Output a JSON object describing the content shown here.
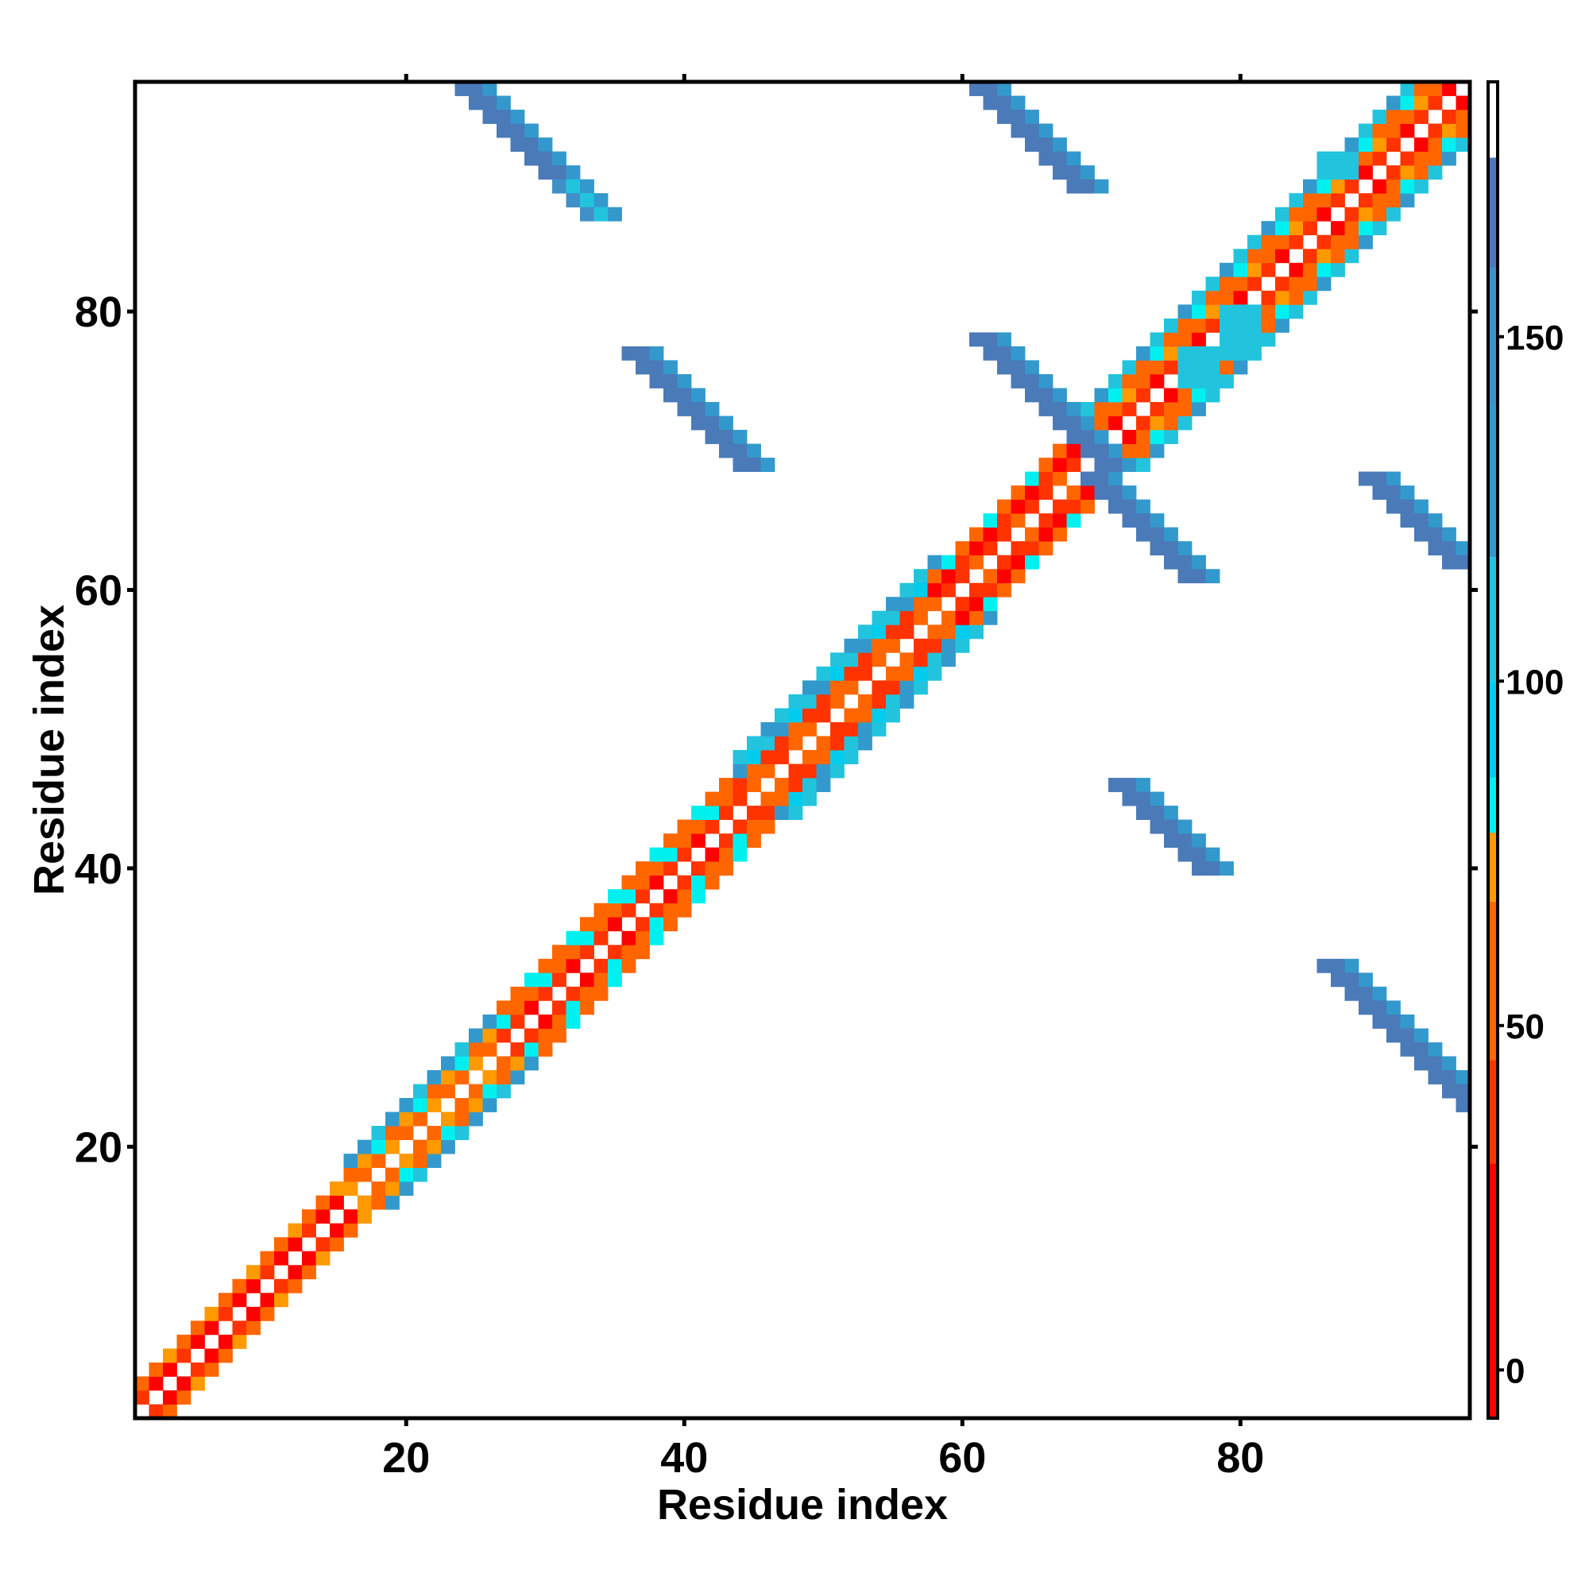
{
  "chart_data": {
    "type": "heatmap",
    "title": "",
    "xlabel": "Residue index",
    "ylabel": "Residue index",
    "xlim": [
      1,
      96
    ],
    "ylim": [
      1,
      96
    ],
    "x_ticks": [
      20,
      40,
      60,
      80
    ],
    "y_ticks": [
      20,
      40,
      60,
      80
    ],
    "colorbar": {
      "range": [
        -7,
        187
      ],
      "ticks": [
        0,
        50,
        100,
        150
      ],
      "segments": [
        {
          "from": -7,
          "to": 30,
          "color": "#ff0000"
        },
        {
          "from": 30,
          "to": 45,
          "color": "#ff3300"
        },
        {
          "from": 45,
          "to": 68,
          "color": "#ff6600"
        },
        {
          "from": 68,
          "to": 78,
          "color": "#ff9900"
        },
        {
          "from": 78,
          "to": 86,
          "color": "#00f0f0"
        },
        {
          "from": 86,
          "to": 100,
          "color": "#00ccee"
        },
        {
          "from": 100,
          "to": 118,
          "color": "#22c4dd"
        },
        {
          "from": 118,
          "to": 140,
          "color": "#3399cc"
        },
        {
          "from": 140,
          "to": 160,
          "color": "#4090c8"
        },
        {
          "from": 160,
          "to": 176,
          "color": "#4a7ab8"
        },
        {
          "from": 176,
          "to": 187,
          "color": "#ffffff"
        }
      ]
    },
    "regions": [
      {
        "name": "diag-1-15",
        "diagonal": true,
        "from": 1,
        "to": 16,
        "offsets": [
          1,
          2
        ],
        "values": [
          10,
          45
        ]
      },
      {
        "name": "diag-16-26",
        "diagonal": true,
        "from": 16,
        "to": 27,
        "offsets": [
          1,
          2,
          3
        ],
        "values": [
          45,
          60,
          110
        ]
      },
      {
        "name": "diag-27-44",
        "diagonal": true,
        "from": 27,
        "to": 45,
        "offsets": [
          1,
          2,
          3
        ],
        "values": [
          20,
          55,
          55
        ]
      },
      {
        "name": "diag-44-58",
        "diagonal": true,
        "from": 44,
        "to": 58,
        "offsets": [
          1,
          2,
          3,
          4
        ],
        "values": [
          40,
          30,
          95,
          100
        ]
      },
      {
        "name": "diag-58-69",
        "diagonal": true,
        "from": 58,
        "to": 69,
        "offsets": [
          1,
          2,
          3
        ],
        "values": [
          30,
          15,
          55
        ]
      },
      {
        "name": "diag-69-96",
        "diagonal": true,
        "from": 69,
        "to": 96,
        "offsets": [
          1,
          2,
          3,
          4
        ],
        "values": [
          20,
          50,
          55,
          100
        ]
      },
      {
        "name": "sheet-25-95",
        "anti": true,
        "x0": 24,
        "y0": 96,
        "len": 10,
        "width": 3,
        "value": 160
      },
      {
        "name": "sheet-33-88",
        "anti": true,
        "x0": 31,
        "y0": 89,
        "len": 3,
        "width": 2,
        "value": 150
      },
      {
        "name": "sheet-61-94",
        "anti": true,
        "x0": 61,
        "y0": 96,
        "len": 8,
        "width": 3,
        "value": 160
      },
      {
        "name": "sheet-37-76",
        "anti": true,
        "x0": 36,
        "y0": 77,
        "len": 9,
        "width": 3,
        "value": 160
      },
      {
        "name": "sheet-61-76",
        "anti": true,
        "x0": 61,
        "y0": 78,
        "len": 10,
        "width": 3,
        "value": 160
      },
      {
        "name": "sheet-71-64",
        "anti": true,
        "x0": 69,
        "y0": 68,
        "len": 8,
        "width": 3,
        "value": 160
      },
      {
        "name": "sheet-90-62",
        "anti": true,
        "x0": 89,
        "y0": 68,
        "len": 7,
        "width": 3,
        "value": 160
      },
      {
        "name": "sheet-72-40",
        "anti": true,
        "x0": 71,
        "y0": 46,
        "len": 7,
        "width": 3,
        "value": 160
      },
      {
        "name": "sheet-88-28",
        "anti": true,
        "x0": 86,
        "y0": 33,
        "len": 11,
        "width": 3,
        "value": 160
      },
      {
        "name": "sheet-82-83",
        "block": true,
        "x0": 79,
        "y0": 80,
        "w": 3,
        "h": 4,
        "value": 100
      },
      {
        "name": "sheet-86-91",
        "block": true,
        "x0": 86,
        "y0": 91,
        "w": 3,
        "h": 2,
        "value": 100
      },
      {
        "name": "sheet-77-80",
        "block": true,
        "x0": 76,
        "y0": 77,
        "w": 3,
        "h": 3,
        "value": 100
      }
    ]
  }
}
